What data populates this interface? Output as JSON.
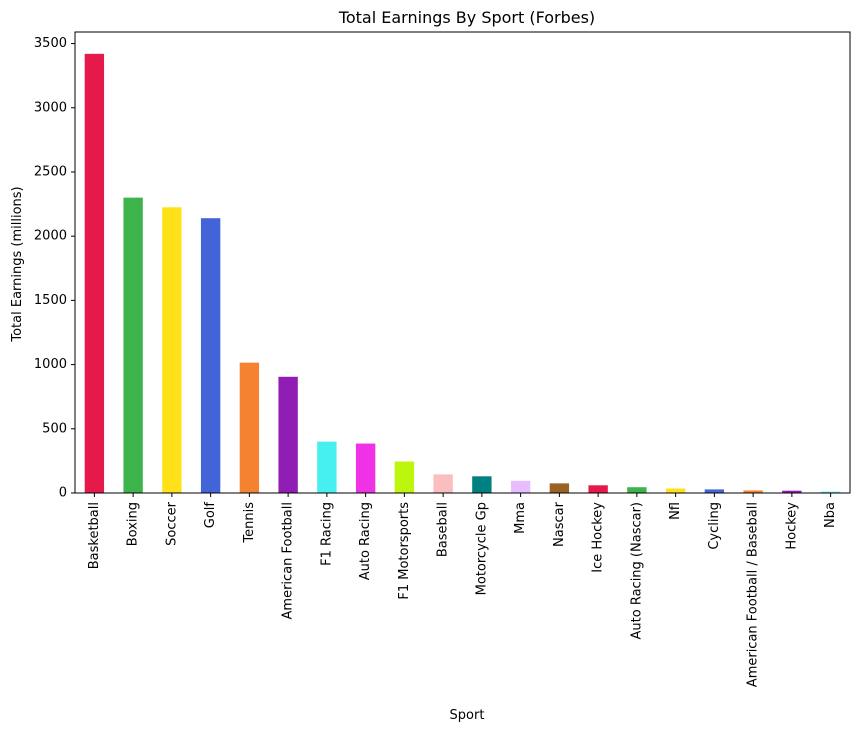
{
  "chart_data": {
    "type": "bar",
    "title": "Total Earnings By Sport (Forbes)",
    "xlabel": "Sport",
    "ylabel": "Total Earnings (millions)",
    "ylim": [
      0,
      3590
    ],
    "yticks": [
      0,
      500,
      1000,
      1500,
      2000,
      2500,
      3000,
      3500
    ],
    "grid": false,
    "categories": [
      "Basketball",
      "Boxing",
      "Soccer",
      "Golf",
      "Tennis",
      "American Football",
      "F1 Racing",
      "Auto Racing",
      "F1 Motorsports",
      "Baseball",
      "Motorcycle Gp",
      "Mma",
      "Nascar",
      "Ice Hockey",
      "Auto Racing (Nascar)",
      "Nfl",
      "Cycling",
      "American Football / Baseball",
      "Hockey",
      "Nba"
    ],
    "values": [
      3420,
      2300,
      2225,
      2140,
      1015,
      905,
      400,
      385,
      245,
      145,
      130,
      95,
      75,
      60,
      45,
      35,
      28,
      20,
      18,
      10
    ],
    "colors": [
      "#e6194b",
      "#3cb44b",
      "#ffe119",
      "#4363d8",
      "#f58231",
      "#911eb4",
      "#46f0f0",
      "#f032e6",
      "#bcf60c",
      "#fabebe",
      "#008080",
      "#e6beff",
      "#9a6324",
      "#e6194b",
      "#3cb44b",
      "#ffe119",
      "#4363d8",
      "#f58231",
      "#911eb4",
      "#46f0f0"
    ]
  }
}
